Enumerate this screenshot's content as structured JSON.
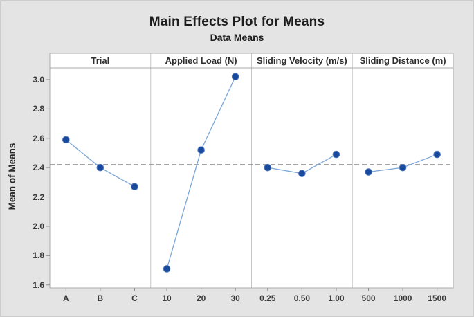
{
  "chart_data": {
    "type": "line",
    "title": "Main Effects Plot for Means",
    "subtitle": "Data Means",
    "ylabel": "Mean of Means",
    "ylim": [
      1.58,
      3.08
    ],
    "yticks": [
      1.6,
      1.8,
      2.0,
      2.2,
      2.4,
      2.6,
      2.8,
      3.0
    ],
    "reference_mean": 2.42,
    "grid": false,
    "legend": "none",
    "panels": [
      {
        "label": "Trial",
        "categories": [
          "A",
          "B",
          "C"
        ],
        "values": [
          2.59,
          2.4,
          2.27
        ]
      },
      {
        "label": "Applied Load (N)",
        "categories": [
          "10",
          "20",
          "30"
        ],
        "values": [
          1.71,
          2.52,
          3.02
        ]
      },
      {
        "label": "Sliding Velocity (m/s)",
        "categories": [
          "0.25",
          "0.50",
          "1.00"
        ],
        "values": [
          2.4,
          2.36,
          2.49
        ]
      },
      {
        "label": "Sliding Distance (m)",
        "categories": [
          "500",
          "1000",
          "1500"
        ],
        "values": [
          2.37,
          2.4,
          2.49
        ]
      }
    ],
    "colors": {
      "marker": "#19499c",
      "marker_edge": "#4f79be",
      "line": "#7ca6d8",
      "reference": "#858585",
      "frame": "#ababab",
      "separator": "#c6c6c6",
      "tick": "#8f8f8f",
      "plot_bg": "#ffffff",
      "figure_bg": "#e4e4e4"
    }
  }
}
